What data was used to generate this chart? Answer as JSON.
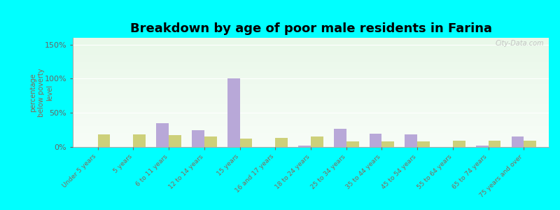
{
  "title": "Breakdown by age of poor male residents in Farina",
  "ylabel": "percentage\nbelow poverty\nlevel",
  "categories": [
    "Under 5 years",
    "5 years",
    "6 to 11 years",
    "12 to 14 years",
    "15 years",
    "16 and 17 years",
    "18 to 24 years",
    "25 to 34 years",
    "35 to 44 years",
    "45 to 54 years",
    "55 to 64 years",
    "65 to 74 years",
    "75 years and over"
  ],
  "farina_values": [
    0,
    0,
    35,
    25,
    100,
    0,
    2,
    27,
    20,
    18,
    0,
    2,
    15
  ],
  "illinois_values": [
    18,
    18,
    17,
    15,
    12,
    13,
    15,
    8,
    8,
    8,
    9,
    9,
    9
  ],
  "farina_color": "#b8a8d8",
  "illinois_color": "#cdd07a",
  "yticks": [
    0,
    50,
    100,
    150
  ],
  "ytick_labels": [
    "0%",
    "50%",
    "100%",
    "150%"
  ],
  "ylim": [
    0,
    160
  ],
  "bar_width": 0.35,
  "title_fontsize": 13,
  "outer_bg": "#00ffff",
  "watermark": "City-Data.com",
  "tick_label_color": "#886655",
  "ylabel_color": "#886655",
  "ytick_color": "#666666"
}
